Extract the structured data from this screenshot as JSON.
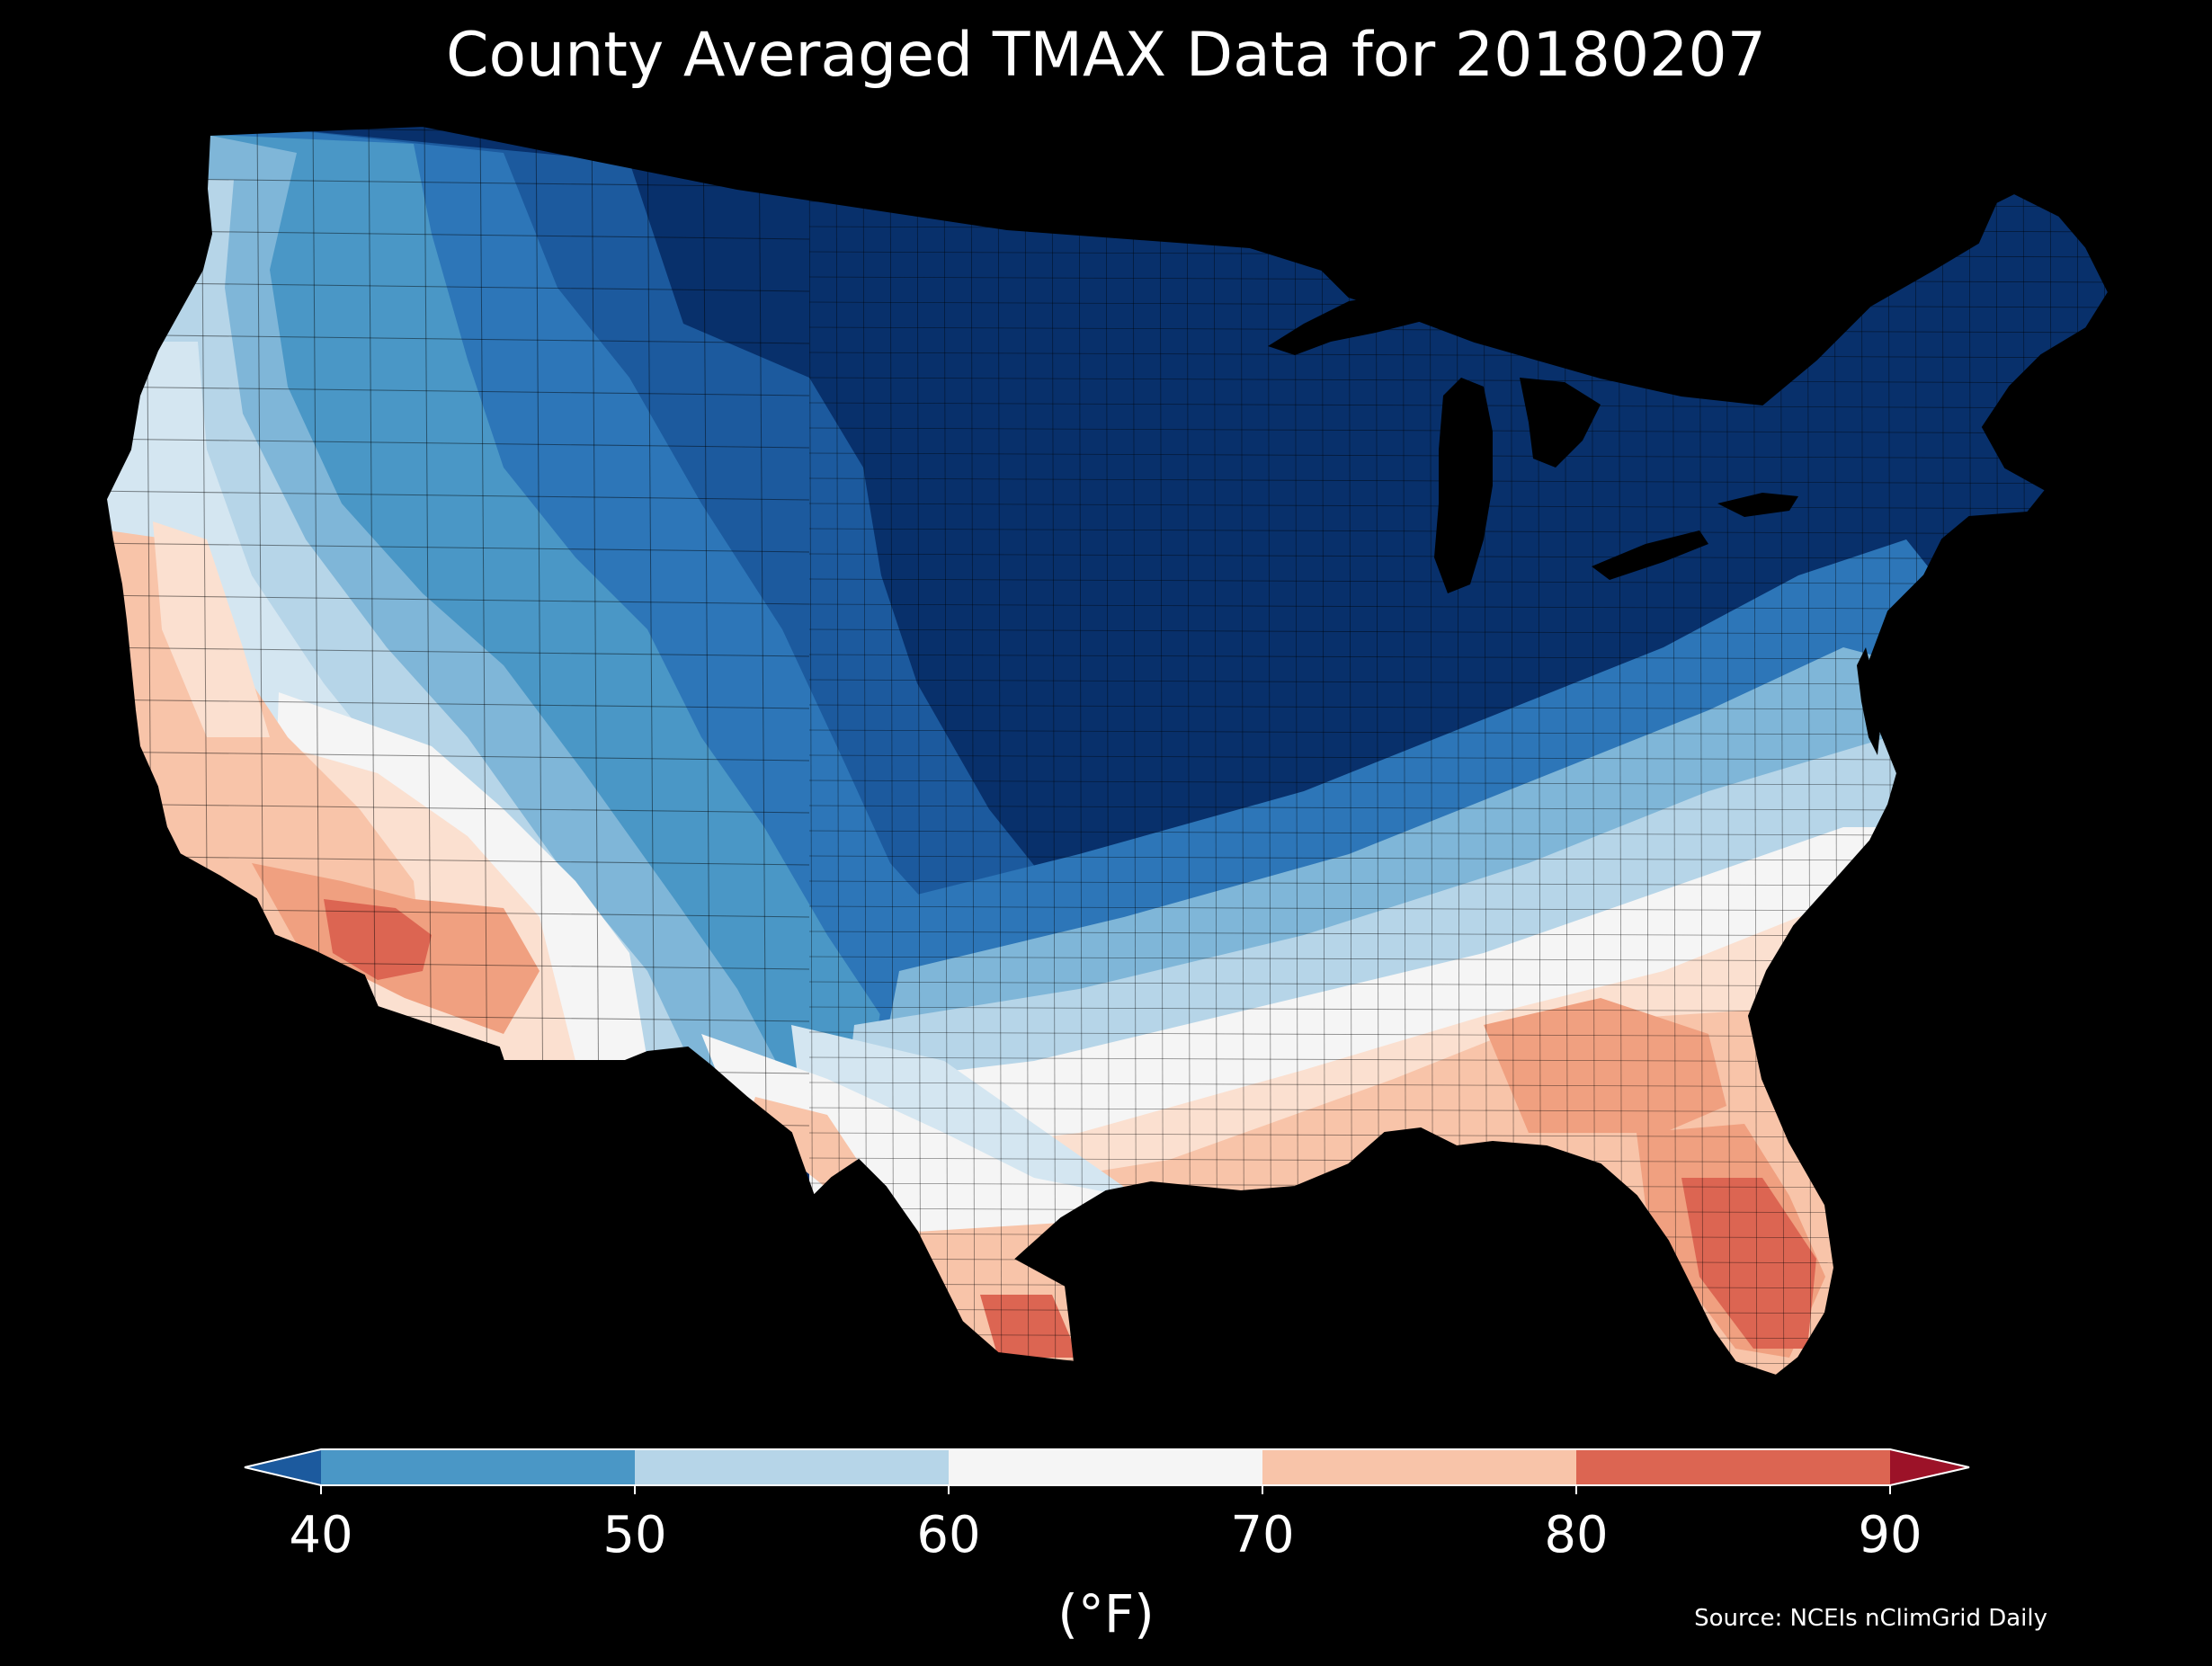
{
  "title": "County Averaged TMAX Data for 20180207",
  "source": "Source: NCEIs nClimGrid Daily",
  "legend": {
    "unit": "(°F)",
    "ticks": [
      "40",
      "50",
      "60",
      "70",
      "80",
      "90"
    ],
    "bins": [
      {
        "range": "below 40",
        "color": "#1c5a9e"
      },
      {
        "range": "40-50",
        "color": "#4a97c6"
      },
      {
        "range": "50-60",
        "color": "#b6d5e8"
      },
      {
        "range": "60-70",
        "color": "#f5f5f5"
      },
      {
        "range": "70-80",
        "color": "#f8c4a9"
      },
      {
        "range": "80-90",
        "color": "#dc6552"
      },
      {
        "range": "above 90",
        "color": "#9c1228"
      }
    ]
  },
  "map": {
    "background": "#000000",
    "colors": {
      "deep": "#08306b",
      "cold_dark": "#08407e",
      "cold": "#1c5a9e",
      "cool_mid": "#2d76b8",
      "cool": "#4a97c6",
      "cool_light": "#7fb6d8",
      "mild": "#b6d5e8",
      "mild_light": "#d4e6f1",
      "neutral": "#f5f5f5",
      "warm_light": "#fbe0d0",
      "warm": "#f8c4a9",
      "warm_mid": "#f0a080",
      "hot": "#dc6552",
      "water": "#000000",
      "county_line": "#000000"
    }
  }
}
